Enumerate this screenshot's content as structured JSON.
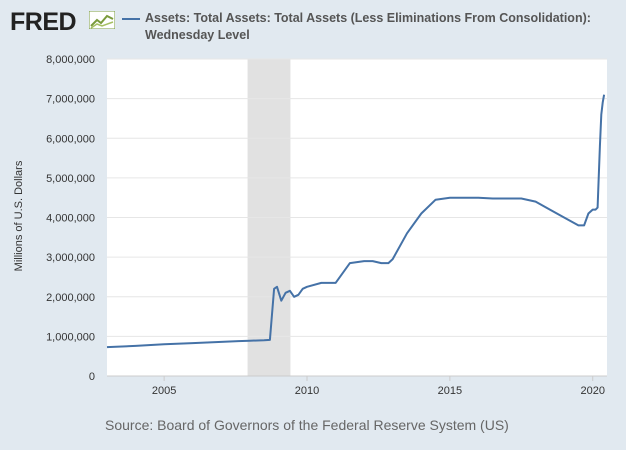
{
  "header": {
    "logo_text": "FRED",
    "logo_mark_icon": "fred-graph-icon",
    "legend_title": "Assets: Total Assets: Total Assets (Less Eliminations From Consolidation): Wednesday Level"
  },
  "footer": {
    "source": "Source: Board of Governors of the Federal Reserve System (US)"
  },
  "chart_data": {
    "type": "line",
    "title": "",
    "xlabel": "",
    "ylabel": "Millions of U.S. Dollars",
    "xlim": [
      2003.0,
      2020.5
    ],
    "ylim": [
      0,
      8000000
    ],
    "x_ticks": [
      2005,
      2010,
      2015,
      2020
    ],
    "x_tick_labels": [
      "2005",
      "2010",
      "2015",
      "2020"
    ],
    "y_ticks": [
      0,
      1000000,
      2000000,
      3000000,
      4000000,
      5000000,
      6000000,
      7000000,
      8000000
    ],
    "y_tick_labels": [
      "0",
      "1,000,000",
      "2,000,000",
      "3,000,000",
      "4,000,000",
      "5,000,000",
      "6,000,000",
      "7,000,000",
      "8,000,000"
    ],
    "recession_shading": [
      [
        2007.92,
        2009.42
      ]
    ],
    "grid": "horizontal",
    "series_color": "#4572a7",
    "series": [
      {
        "name": "Assets: Total Assets: Total Assets (Less Eliminations From Consolidation): Wednesday Level",
        "x": [
          2003.0,
          2004.0,
          2005.0,
          2006.0,
          2007.0,
          2007.6,
          2008.0,
          2008.5,
          2008.7,
          2008.85,
          2008.95,
          2009.1,
          2009.25,
          2009.4,
          2009.55,
          2009.7,
          2009.85,
          2010.0,
          2010.5,
          2011.0,
          2011.5,
          2012.0,
          2012.3,
          2012.6,
          2012.85,
          2013.0,
          2013.5,
          2014.0,
          2014.5,
          2015.0,
          2015.5,
          2016.0,
          2016.5,
          2017.0,
          2017.5,
          2018.0,
          2018.5,
          2019.0,
          2019.5,
          2019.7,
          2019.85,
          2020.0,
          2020.1,
          2020.17,
          2020.2,
          2020.25,
          2020.3,
          2020.35,
          2020.4
        ],
        "y": [
          730000,
          760000,
          800000,
          830000,
          860000,
          880000,
          890000,
          900000,
          910000,
          2200000,
          2250000,
          1900000,
          2100000,
          2150000,
          2000000,
          2050000,
          2200000,
          2250000,
          2350000,
          2350000,
          2850000,
          2900000,
          2900000,
          2850000,
          2850000,
          2950000,
          3600000,
          4100000,
          4450000,
          4500000,
          4500000,
          4500000,
          4480000,
          4480000,
          4480000,
          4400000,
          4200000,
          4000000,
          3800000,
          3800000,
          4100000,
          4200000,
          4200000,
          4250000,
          4800000,
          5800000,
          6600000,
          6900000,
          7100000
        ]
      }
    ]
  }
}
